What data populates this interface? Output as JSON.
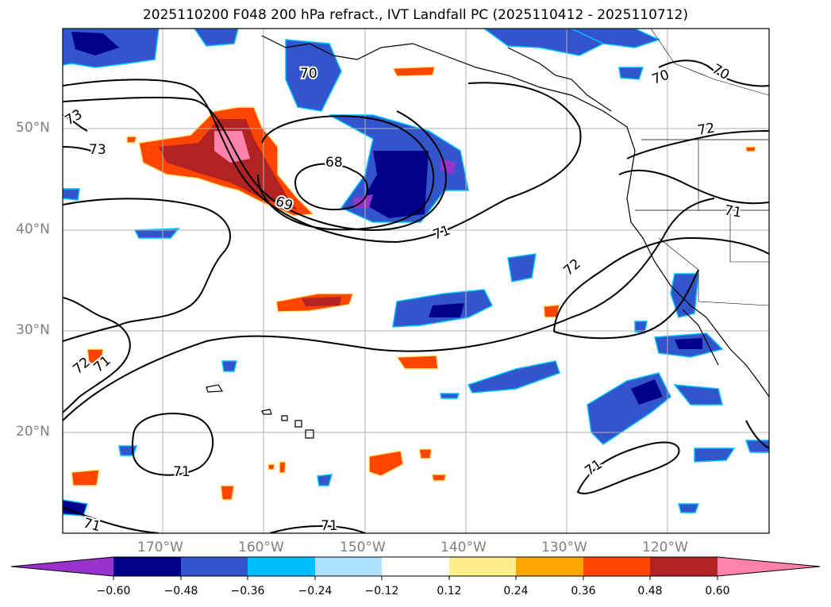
{
  "title": "2025110200 F048 200 hPa refract., IVT Landfall PC (2025110412 - 2025110712)",
  "map": {
    "lat_labels": [
      "50°N",
      "40°N",
      "30°N",
      "20°N"
    ],
    "lon_labels": [
      "170°W",
      "160°W",
      "150°W",
      "140°W",
      "130°W",
      "120°W"
    ],
    "contour_labels": [
      "70",
      "70",
      "70",
      "72",
      "71",
      "73",
      "73",
      "68",
      "69",
      "71",
      "72",
      "72",
      "71",
      "71",
      "71",
      "71",
      "71"
    ]
  },
  "colorbar": {
    "ticks": [
      "−0.60",
      "−0.48",
      "−0.36",
      "−0.24",
      "−0.12",
      "0.12",
      "0.24",
      "0.36",
      "0.48",
      "0.60"
    ],
    "colors": [
      "#9932cc",
      "#00008b",
      "#3355cc",
      "#00bfff",
      "#aee0ff",
      "#ffffff",
      "#ffec8b",
      "#ffa500",
      "#ff4500",
      "#b22222",
      "#ff82ab"
    ]
  }
}
